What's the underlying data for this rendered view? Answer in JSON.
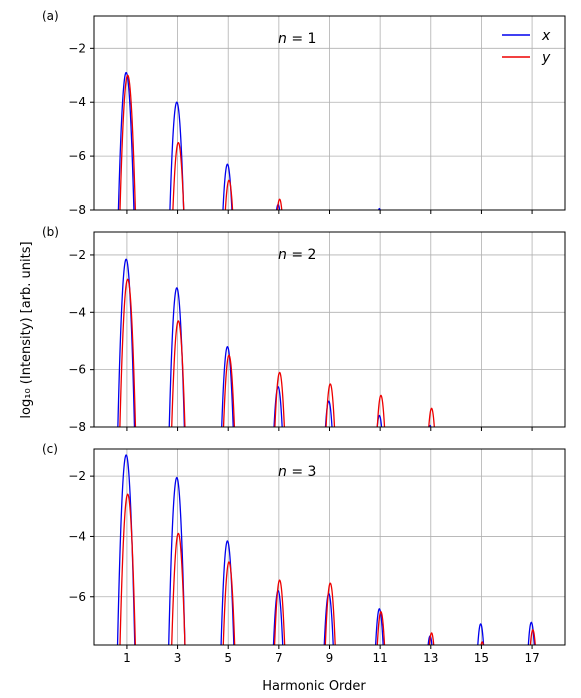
{
  "chart_data": {
    "type": "line",
    "xlabel": "Harmonic Order",
    "ylabel": "log₁₀ (Intensity)   [arb. units]",
    "xticks": [
      1,
      3,
      5,
      7,
      9,
      11,
      13,
      15,
      17
    ],
    "xlim": [
      -0.3,
      18.3
    ],
    "grid": true,
    "legend": {
      "placement": "top-right",
      "entries": [
        "x",
        "y"
      ]
    },
    "colors": {
      "x": "#0000ee",
      "y": "#ee0000"
    },
    "panels": [
      {
        "label": "(a)",
        "annotation_var": "n",
        "annotation_val": "= 1",
        "ylim": [
          -8,
          -0.8
        ],
        "yticks": [
          -2,
          -4,
          -6,
          -8
        ],
        "show_legend": true,
        "peaks": {
          "x": [
            [
              1,
              -2.9
            ],
            [
              3,
              -4.0
            ],
            [
              5,
              -6.3
            ],
            [
              7,
              -7.8
            ],
            [
              11,
              -7.95
            ]
          ],
          "y": [
            [
              1,
              -3.0
            ],
            [
              3,
              -5.5
            ],
            [
              5,
              -6.9
            ],
            [
              7,
              -7.6
            ]
          ]
        }
      },
      {
        "label": "(b)",
        "annotation_var": "n",
        "annotation_val": "= 2",
        "ylim": [
          -8,
          -1.2
        ],
        "yticks": [
          -2,
          -4,
          -6,
          -8
        ],
        "show_legend": false,
        "peaks": {
          "x": [
            [
              1,
              -2.15
            ],
            [
              3,
              -3.15
            ],
            [
              5,
              -5.2
            ],
            [
              7,
              -6.6
            ],
            [
              9,
              -7.1
            ],
            [
              11,
              -7.6
            ],
            [
              13,
              -7.95
            ]
          ],
          "y": [
            [
              1,
              -2.85
            ],
            [
              3,
              -4.3
            ],
            [
              5,
              -5.5
            ],
            [
              7,
              -6.1
            ],
            [
              9,
              -6.5
            ],
            [
              11,
              -6.9
            ],
            [
              13,
              -7.35
            ]
          ]
        }
      },
      {
        "label": "(c)",
        "annotation_var": "n",
        "annotation_val": "= 3",
        "ylim": [
          -7.6,
          -1.1
        ],
        "yticks": [
          -2,
          -4,
          -6
        ],
        "show_legend": false,
        "peaks": {
          "x": [
            [
              1,
              -1.3
            ],
            [
              3,
              -2.05
            ],
            [
              5,
              -4.15
            ],
            [
              7,
              -5.8
            ],
            [
              9,
              -5.9
            ],
            [
              11,
              -6.4
            ],
            [
              13,
              -7.3
            ],
            [
              15,
              -6.9
            ],
            [
              17,
              -6.85
            ]
          ],
          "y": [
            [
              1,
              -2.6
            ],
            [
              3,
              -3.9
            ],
            [
              5,
              -4.85
            ],
            [
              7,
              -5.45
            ],
            [
              9,
              -5.55
            ],
            [
              11,
              -6.5
            ],
            [
              13,
              -7.2
            ],
            [
              15,
              -7.5
            ],
            [
              17,
              -7.1
            ]
          ]
        }
      }
    ]
  }
}
